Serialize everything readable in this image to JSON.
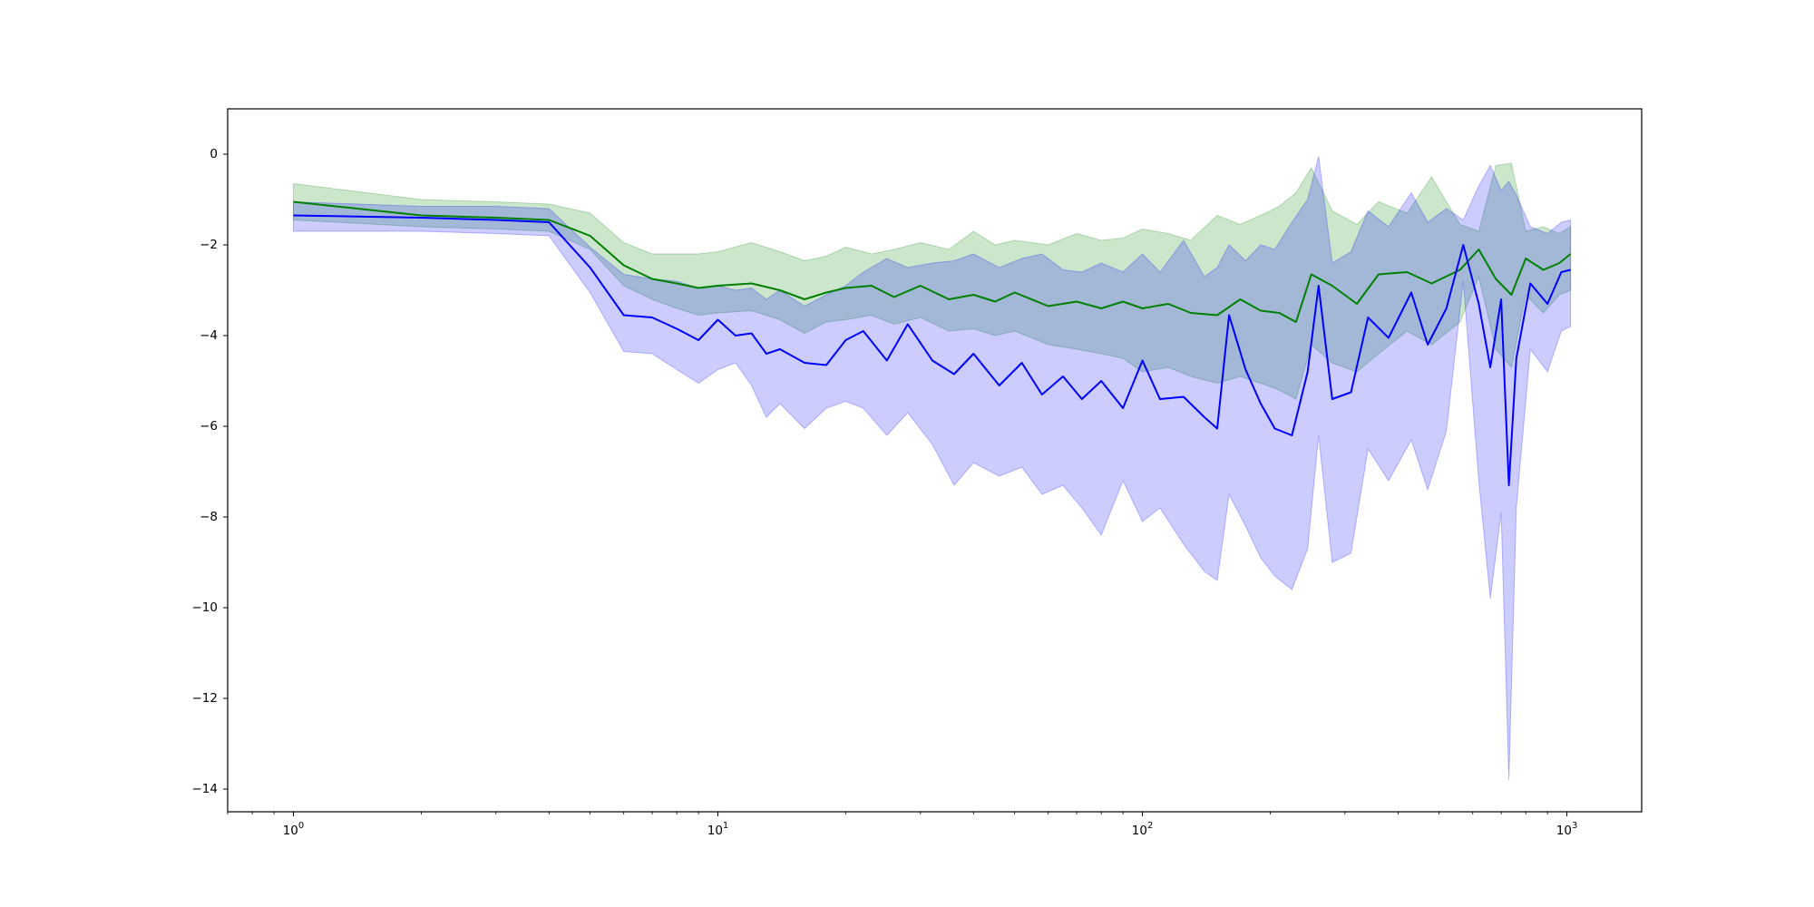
{
  "chart_data": {
    "type": "line",
    "title": "",
    "xlabel": "",
    "ylabel": "",
    "x_scale": "log",
    "xlim": [
      0.7,
      1500
    ],
    "ylim": [
      -14.5,
      1.0
    ],
    "grid": false,
    "legend": "none",
    "x_tick_values": [
      1,
      10,
      100,
      1000
    ],
    "x_tick_labels": {
      "t0": {
        "base": "10",
        "exp": "0"
      },
      "t1": {
        "base": "10",
        "exp": "1"
      },
      "t2": {
        "base": "10",
        "exp": "2"
      },
      "t3": {
        "base": "10",
        "exp": "3"
      }
    },
    "y_tick_values": [
      0,
      -2,
      -4,
      -6,
      -8,
      -10,
      -12,
      -14
    ],
    "y_tick_labels": {
      "t0": "0",
      "t1": "−2",
      "t2": "−4",
      "t3": "−6",
      "t4": "−8",
      "t5": "−10",
      "t6": "−12",
      "t7": "−14"
    },
    "series": [
      {
        "color": "#008000",
        "band_color": "#008000",
        "band_opacity": 0.2,
        "points": [
          [
            1,
            -1.05,
            -0.65,
            -1.45
          ],
          [
            2,
            -1.35,
            -1.0,
            -1.6
          ],
          [
            3,
            -1.4,
            -1.05,
            -1.65
          ],
          [
            4,
            -1.45,
            -1.1,
            -1.7
          ],
          [
            5,
            -1.8,
            -1.3,
            -2.1
          ],
          [
            6,
            -2.45,
            -1.95,
            -2.9
          ],
          [
            7,
            -2.75,
            -2.2,
            -3.2
          ],
          [
            8,
            -2.85,
            -2.2,
            -3.4
          ],
          [
            9,
            -2.95,
            -2.2,
            -3.55
          ],
          [
            10,
            -2.9,
            -2.15,
            -3.5
          ],
          [
            12,
            -2.85,
            -1.95,
            -3.45
          ],
          [
            14,
            -3.0,
            -2.15,
            -3.65
          ],
          [
            16,
            -3.2,
            -2.35,
            -3.95
          ],
          [
            18,
            -3.05,
            -2.25,
            -3.7
          ],
          [
            20,
            -2.95,
            -2.05,
            -3.65
          ],
          [
            23,
            -2.9,
            -2.2,
            -3.55
          ],
          [
            26,
            -3.15,
            -2.1,
            -3.75
          ],
          [
            30,
            -2.9,
            -1.95,
            -3.6
          ],
          [
            35,
            -3.2,
            -2.1,
            -3.9
          ],
          [
            40,
            -3.1,
            -1.7,
            -3.85
          ],
          [
            45,
            -3.25,
            -2.0,
            -4.0
          ],
          [
            50,
            -3.05,
            -1.9,
            -3.9
          ],
          [
            60,
            -3.35,
            -2.0,
            -4.2
          ],
          [
            70,
            -3.25,
            -1.75,
            -4.3
          ],
          [
            80,
            -3.4,
            -1.9,
            -4.4
          ],
          [
            90,
            -3.25,
            -1.85,
            -4.5
          ],
          [
            100,
            -3.4,
            -1.65,
            -4.8
          ],
          [
            115,
            -3.3,
            -1.75,
            -4.7
          ],
          [
            130,
            -3.5,
            -1.9,
            -4.9
          ],
          [
            150,
            -3.55,
            -1.35,
            -5.05
          ],
          [
            170,
            -3.2,
            -1.55,
            -4.9
          ],
          [
            190,
            -3.45,
            -1.35,
            -5.05
          ],
          [
            210,
            -3.5,
            -1.15,
            -5.2
          ],
          [
            230,
            -3.7,
            -0.85,
            -5.4
          ],
          [
            250,
            -2.65,
            -0.3,
            -4.2
          ],
          [
            280,
            -2.9,
            -1.25,
            -4.6
          ],
          [
            320,
            -3.3,
            -1.55,
            -4.8
          ],
          [
            360,
            -2.65,
            -1.05,
            -4.4
          ],
          [
            420,
            -2.6,
            -1.3,
            -3.9
          ],
          [
            480,
            -2.85,
            -0.5,
            -4.2
          ],
          [
            560,
            -2.55,
            -1.55,
            -3.7
          ],
          [
            620,
            -2.1,
            -1.7,
            -2.7
          ],
          [
            680,
            -2.75,
            -0.25,
            -4.3
          ],
          [
            740,
            -3.1,
            -0.2,
            -4.7
          ],
          [
            800,
            -2.3,
            -1.7,
            -3.1
          ],
          [
            880,
            -2.55,
            -1.6,
            -3.5
          ],
          [
            960,
            -2.4,
            -1.75,
            -3.1
          ],
          [
            1020,
            -2.2,
            -1.6,
            -3.0
          ]
        ]
      },
      {
        "color": "#0000ff",
        "band_color": "#0000ff",
        "band_opacity": 0.2,
        "points": [
          [
            1,
            -1.35,
            -1.05,
            -1.7
          ],
          [
            2,
            -1.4,
            -1.15,
            -1.7
          ],
          [
            3,
            -1.45,
            -1.15,
            -1.75
          ],
          [
            4,
            -1.5,
            -1.2,
            -1.8
          ],
          [
            5,
            -2.5,
            -2.05,
            -3.05
          ],
          [
            6,
            -3.55,
            -2.65,
            -4.35
          ],
          [
            7,
            -3.6,
            -2.75,
            -4.4
          ],
          [
            8,
            -3.85,
            -2.8,
            -4.75
          ],
          [
            9,
            -4.1,
            -2.95,
            -5.05
          ],
          [
            10,
            -3.65,
            -2.9,
            -4.75
          ],
          [
            11,
            -4.0,
            -3.0,
            -4.6
          ],
          [
            12,
            -3.95,
            -2.95,
            -5.1
          ],
          [
            13,
            -4.4,
            -3.2,
            -5.8
          ],
          [
            14,
            -4.3,
            -3.0,
            -5.5
          ],
          [
            16,
            -4.6,
            -3.35,
            -6.05
          ],
          [
            18,
            -4.65,
            -3.1,
            -5.6
          ],
          [
            20,
            -4.1,
            -2.9,
            -5.45
          ],
          [
            22,
            -3.9,
            -2.6,
            -5.6
          ],
          [
            25,
            -4.55,
            -2.3,
            -6.2
          ],
          [
            28,
            -3.75,
            -2.5,
            -5.7
          ],
          [
            32,
            -4.55,
            -2.4,
            -6.4
          ],
          [
            36,
            -4.85,
            -2.35,
            -7.3
          ],
          [
            40,
            -4.4,
            -2.2,
            -6.8
          ],
          [
            46,
            -5.1,
            -2.5,
            -7.1
          ],
          [
            52,
            -4.6,
            -2.3,
            -6.9
          ],
          [
            58,
            -5.3,
            -2.2,
            -7.5
          ],
          [
            65,
            -4.9,
            -2.55,
            -7.3
          ],
          [
            72,
            -5.4,
            -2.6,
            -7.8
          ],
          [
            80,
            -5.0,
            -2.4,
            -8.4
          ],
          [
            90,
            -5.6,
            -2.6,
            -7.2
          ],
          [
            100,
            -4.55,
            -2.2,
            -8.1
          ],
          [
            110,
            -5.4,
            -2.6,
            -7.8
          ],
          [
            125,
            -5.35,
            -1.9,
            -8.6
          ],
          [
            140,
            -5.8,
            -2.7,
            -9.2
          ],
          [
            150,
            -6.05,
            -2.5,
            -9.4
          ],
          [
            160,
            -3.55,
            -2.0,
            -7.5
          ],
          [
            175,
            -4.75,
            -2.35,
            -8.2
          ],
          [
            190,
            -5.5,
            -2.0,
            -8.9
          ],
          [
            205,
            -6.05,
            -2.1,
            -9.3
          ],
          [
            225,
            -6.2,
            -1.5,
            -9.6
          ],
          [
            245,
            -4.8,
            -1.0,
            -8.7
          ],
          [
            260,
            -2.9,
            -0.05,
            -6.2
          ],
          [
            280,
            -5.4,
            -2.4,
            -9.0
          ],
          [
            310,
            -5.25,
            -2.15,
            -8.8
          ],
          [
            340,
            -3.6,
            -1.25,
            -6.5
          ],
          [
            380,
            -4.05,
            -1.6,
            -7.2
          ],
          [
            430,
            -3.05,
            -0.85,
            -6.3
          ],
          [
            470,
            -4.2,
            -1.5,
            -7.4
          ],
          [
            520,
            -3.4,
            -1.2,
            -6.1
          ],
          [
            570,
            -2.0,
            -1.45,
            -2.8
          ],
          [
            620,
            -3.3,
            -0.7,
            -7.2
          ],
          [
            660,
            -4.7,
            -0.25,
            -9.8
          ],
          [
            700,
            -3.2,
            -0.8,
            -7.9
          ],
          [
            730,
            -7.3,
            -0.6,
            -13.8
          ],
          [
            760,
            -4.5,
            -0.9,
            -7.8
          ],
          [
            820,
            -2.85,
            -1.6,
            -4.3
          ],
          [
            900,
            -3.3,
            -1.75,
            -4.8
          ],
          [
            970,
            -2.6,
            -1.5,
            -3.9
          ],
          [
            1020,
            -2.55,
            -1.45,
            -3.8
          ]
        ]
      }
    ]
  }
}
